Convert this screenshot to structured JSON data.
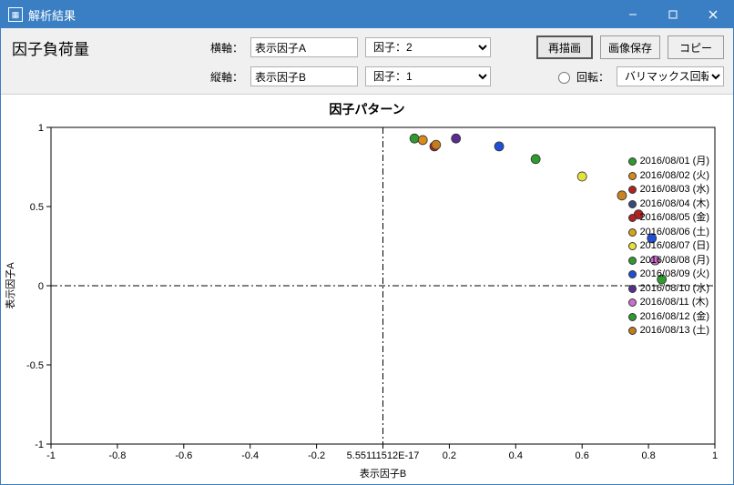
{
  "window": {
    "title": "解析結果"
  },
  "header": {
    "heading": "因子負荷量",
    "xaxis_label": "横軸：",
    "yaxis_label": "縦軸：",
    "xaxis_name": "表示因子A",
    "yaxis_name": "表示因子B",
    "factor_x": "因子：2",
    "factor_y": "因子：1",
    "btn_redraw": "再描画",
    "btn_save": "画像保存",
    "btn_copy": "コピー",
    "rotation_label": "回転：",
    "rotation_value": "バリマックス回転"
  },
  "chart": {
    "title": "因子パターン",
    "xlabel": "表示因子B",
    "ylabel": "表示因子A",
    "xlim": [
      -1,
      1
    ],
    "ylim": [
      -1,
      1
    ],
    "xticks": [
      -1,
      -0.8,
      -0.6,
      -0.4,
      -0.2,
      0,
      0.2,
      0.4,
      0.6,
      0.8,
      1
    ],
    "xtick_labels": [
      "-1",
      "-0.8",
      "-0.6",
      "-0.4",
      "-0.2",
      "5.55111512E-17",
      "0.2",
      "0.4",
      "0.6",
      "0.8",
      "1"
    ],
    "yticks": [
      -1,
      -0.5,
      0,
      0.5,
      1
    ],
    "ytick_labels": [
      "-1",
      "-0.5",
      "0",
      "0.5",
      "1"
    ],
    "background": "#ffffff",
    "axis_color": "#000000",
    "marker_radius": 5,
    "points": [
      {
        "x": 0.095,
        "y": 0.93,
        "color": "#2e9b2e"
      },
      {
        "x": 0.12,
        "y": 0.92,
        "color": "#d88a1a"
      },
      {
        "x": 0.155,
        "y": 0.88,
        "color": "#b22222"
      },
      {
        "x": 0.16,
        "y": 0.89,
        "color": "#c47d1a"
      },
      {
        "x": 0.22,
        "y": 0.93,
        "color": "#5a2d91"
      },
      {
        "x": 0.35,
        "y": 0.88,
        "color": "#1f4fd6"
      },
      {
        "x": 0.46,
        "y": 0.8,
        "color": "#2e9b2e"
      },
      {
        "x": 0.6,
        "y": 0.69,
        "color": "#e6e23c"
      },
      {
        "x": 0.72,
        "y": 0.57,
        "color": "#c9841f"
      },
      {
        "x": 0.77,
        "y": 0.45,
        "color": "#b22222"
      },
      {
        "x": 0.81,
        "y": 0.3,
        "color": "#1f4fd6"
      },
      {
        "x": 0.82,
        "y": 0.16,
        "color": "#cc6fd1"
      },
      {
        "x": 0.84,
        "y": 0.04,
        "color": "#2e9b2e"
      }
    ],
    "legend": [
      {
        "label": "2016/08/01 (月)",
        "color": "#2e9b2e"
      },
      {
        "label": "2016/08/02 (火)",
        "color": "#d88a1a"
      },
      {
        "label": "2016/08/03 (水)",
        "color": "#b22222"
      },
      {
        "label": "2016/08/04 (木)",
        "color": "#3a4a7a"
      },
      {
        "label": "2016/08/05 (金)",
        "color": "#b22222"
      },
      {
        "label": "2016/08/06 (土)",
        "color": "#d8a41a"
      },
      {
        "label": "2016/08/07 (日)",
        "color": "#e6e23c"
      },
      {
        "label": "2016/08/08 (月)",
        "color": "#2e9b2e"
      },
      {
        "label": "2016/08/09 (火)",
        "color": "#1f4fd6"
      },
      {
        "label": "2016/08/10 (水)",
        "color": "#5a2d91"
      },
      {
        "label": "2016/08/11 (木)",
        "color": "#cc6fd1"
      },
      {
        "label": "2016/08/12 (金)",
        "color": "#2e9b2e"
      },
      {
        "label": "2016/08/13 (土)",
        "color": "#c47d1a"
      }
    ]
  }
}
